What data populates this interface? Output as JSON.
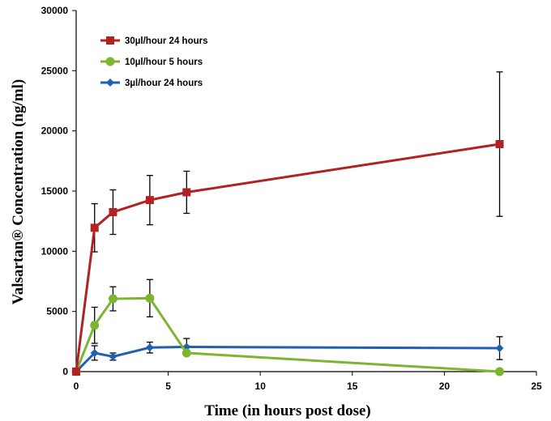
{
  "chart_data": {
    "type": "line",
    "xlabel": "Time (in hours post dose)",
    "ylabel": "Valsartan® Concentration (ng/ml)",
    "xlim": [
      0,
      25
    ],
    "ylim": [
      0,
      30000
    ],
    "x_ticks": [
      0,
      5,
      10,
      15,
      20,
      25
    ],
    "y_ticks": [
      0,
      5000,
      10000,
      15000,
      20000,
      25000,
      30000
    ],
    "grid": false,
    "legend_position": "top-left",
    "series": [
      {
        "name": "30µl/hour 24 hours",
        "color": "#B22222",
        "marker": "square",
        "x": [
          0,
          1,
          2,
          4,
          6,
          23
        ],
        "y": [
          0,
          11950,
          13250,
          14250,
          14900,
          18900
        ],
        "err": [
          0,
          2000,
          1850,
          2050,
          1750,
          6000
        ]
      },
      {
        "name": "10µl/hour 5 hours",
        "color": "#7DB532",
        "marker": "circle",
        "x": [
          0,
          1,
          2,
          4,
          6,
          23
        ],
        "y": [
          0,
          3850,
          6050,
          6100,
          1550,
          0
        ],
        "err": [
          0,
          1500,
          1000,
          1550,
          0,
          0
        ]
      },
      {
        "name": "3µl/hour 24 hours",
        "color": "#2060B0",
        "marker": "diamond",
        "x": [
          0,
          1,
          2,
          4,
          6,
          23
        ],
        "y": [
          0,
          1550,
          1250,
          2000,
          2050,
          1950
        ],
        "err": [
          0,
          600,
          300,
          450,
          700,
          950
        ]
      }
    ]
  }
}
